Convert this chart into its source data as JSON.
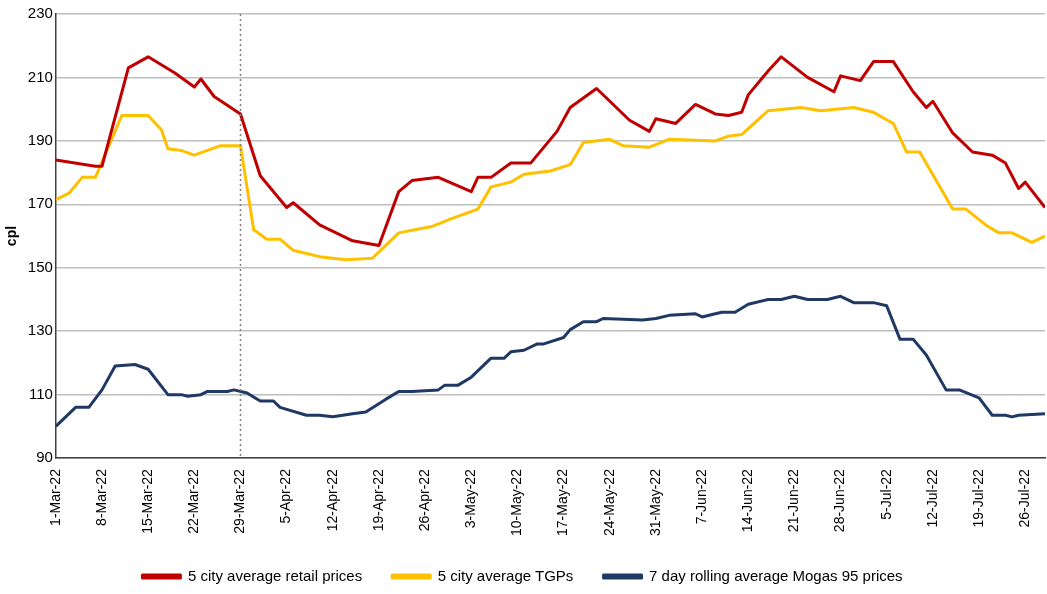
{
  "chart_data": {
    "type": "line",
    "ylabel": "cpl",
    "xlim": [
      "--03-01",
      "--07-29"
    ],
    "ylim": [
      90,
      230
    ],
    "yticks": [
      90,
      110,
      130,
      150,
      170,
      190,
      210,
      230
    ],
    "xticks": [
      {
        "value": "--03-01",
        "label": "1-Mar-22"
      },
      {
        "value": "--03-08",
        "label": "8-Mar-22"
      },
      {
        "value": "--03-15",
        "label": "15-Mar-22"
      },
      {
        "value": "--03-22",
        "label": "22-Mar-22"
      },
      {
        "value": "--03-29",
        "label": "29-Mar-22"
      },
      {
        "value": "--04-05",
        "label": "5-Apr-22"
      },
      {
        "value": "--04-12",
        "label": "12-Apr-22"
      },
      {
        "value": "--04-19",
        "label": "19-Apr-22"
      },
      {
        "value": "--04-26",
        "label": "26-Apr-22"
      },
      {
        "value": "--05-03",
        "label": "3-May-22"
      },
      {
        "value": "--05-10",
        "label": "10-May-22"
      },
      {
        "value": "--05-17",
        "label": "17-May-22"
      },
      {
        "value": "--05-24",
        "label": "24-May-22"
      },
      {
        "value": "--05-31",
        "label": "31-May-22"
      },
      {
        "value": "--06-07",
        "label": "7-Jun-22"
      },
      {
        "value": "--06-14",
        "label": "14-Jun-22"
      },
      {
        "value": "--06-21",
        "label": "21-Jun-22"
      },
      {
        "value": "--06-28",
        "label": "28-Jun-22"
      },
      {
        "value": "--07-05",
        "label": "5-Jul-22"
      },
      {
        "value": "--07-12",
        "label": "12-Jul-22"
      },
      {
        "value": "--07-19",
        "label": "19-Jul-22"
      },
      {
        "value": "--07-26",
        "label": "26-Jul-22"
      }
    ],
    "grid": "y",
    "legend": "bottom",
    "marker": "none",
    "line_style": "solid",
    "ref_lines": [
      {
        "axis": "x",
        "value": "--03-29",
        "color": "#808080",
        "line_style": "dotted"
      }
    ],
    "series": [
      {
        "name": "5 city average retail prices",
        "color": "#c00000",
        "x": [
          "--03-01",
          "--03-07",
          "--03-08",
          "--03-12",
          "--03-15",
          "--03-19",
          "--03-22",
          "--03-23",
          "--03-25",
          "--03-29",
          "--04-01",
          "--04-05",
          "--04-06",
          "--04-10",
          "--04-15",
          "--04-19",
          "--04-22",
          "--04-24",
          "--04-28",
          "--05-03",
          "--05-04",
          "--05-06",
          "--05-09",
          "--05-12",
          "--05-16",
          "--05-18",
          "--05-22",
          "--05-27",
          "--05-30",
          "--05-31",
          "--06-03",
          "--06-06",
          "--06-09",
          "--06-11",
          "--06-13",
          "--06-14",
          "--06-17",
          "--06-19",
          "--06-23",
          "--06-27",
          "--06-28",
          "--07-01",
          "--07-03",
          "--07-06",
          "--07-09",
          "--07-11",
          "--07-12",
          "--07-15",
          "--07-18",
          "--07-21",
          "--07-23",
          "--07-25",
          "--07-26",
          "--07-29"
        ],
        "values": [
          184,
          182,
          182,
          213,
          216.5,
          211.5,
          207,
          209.5,
          204,
          198.5,
          179,
          169,
          170.5,
          163.5,
          158.5,
          157,
          174,
          177.5,
          178.5,
          174,
          178.5,
          178.5,
          183,
          183,
          193,
          200.5,
          206.5,
          196.5,
          193,
          197,
          195.5,
          201.5,
          198.5,
          198,
          199,
          204.5,
          212,
          216.5,
          210,
          205.5,
          210.5,
          209,
          215,
          215,
          205.5,
          200.5,
          202.5,
          192.5,
          186.5,
          185.5,
          183,
          175,
          177,
          169
        ]
      },
      {
        "name": "5 city average TGPs",
        "color": "#ffc000",
        "x": [
          "--03-01",
          "--03-03",
          "--03-05",
          "--03-07",
          "--03-11",
          "--03-15",
          "--03-17",
          "--03-18",
          "--03-20",
          "--03-22",
          "--03-26",
          "--03-29",
          "--03-31",
          "--04-02",
          "--04-04",
          "--04-06",
          "--04-10",
          "--04-14",
          "--04-18",
          "--04-22",
          "--04-27",
          "--04-30",
          "--05-04",
          "--05-06",
          "--05-09",
          "--05-11",
          "--05-15",
          "--05-18",
          "--05-20",
          "--05-24",
          "--05-26",
          "--05-30",
          "--06-02",
          "--06-09",
          "--06-11",
          "--06-13",
          "--06-17",
          "--06-22",
          "--06-25",
          "--06-30",
          "--07-03",
          "--07-06",
          "--07-08",
          "--07-10",
          "--07-15",
          "--07-17",
          "--07-20",
          "--07-22",
          "--07-24",
          "--07-27",
          "--07-29"
        ],
        "values": [
          171.5,
          173.5,
          178.5,
          178.5,
          198,
          198,
          193.5,
          187.5,
          187,
          185.5,
          188.5,
          188.5,
          162,
          159,
          159,
          155.5,
          153.5,
          152.5,
          153,
          161,
          163,
          165.5,
          168.5,
          175.5,
          177,
          179.5,
          180.5,
          182.5,
          189.5,
          190.5,
          188.5,
          188,
          190.5,
          190,
          191.5,
          192,
          199.5,
          200.5,
          199.5,
          200.5,
          199,
          195.5,
          186.5,
          186.5,
          168.5,
          168.5,
          163.5,
          161,
          161,
          158,
          160
        ]
      },
      {
        "name": "7 day rolling average Mogas 95 prices",
        "color": "#1f3864",
        "x": [
          "--03-01",
          "--03-04",
          "--03-06",
          "--03-08",
          "--03-10",
          "--03-13",
          "--03-15",
          "--03-18",
          "--03-20",
          "--03-21",
          "--03-23",
          "--03-24",
          "--03-27",
          "--03-28",
          "--03-30",
          "--04-01",
          "--04-03",
          "--04-04",
          "--04-08",
          "--04-10",
          "--04-12",
          "--04-15",
          "--04-17",
          "--04-20",
          "--04-22",
          "--04-24",
          "--04-28",
          "--04-29",
          "--05-01",
          "--05-03",
          "--05-06",
          "--05-08",
          "--05-09",
          "--05-11",
          "--05-13",
          "--05-14",
          "--05-17",
          "--05-18",
          "--05-20",
          "--05-22",
          "--05-23",
          "--05-29",
          "--05-31",
          "--06-02",
          "--06-06",
          "--06-07",
          "--06-09",
          "--06-10",
          "--06-12",
          "--06-14",
          "--06-17",
          "--06-19",
          "--06-21",
          "--06-23",
          "--06-26",
          "--06-28",
          "--06-30",
          "--07-03",
          "--07-05",
          "--07-07",
          "--07-09",
          "--07-11",
          "--07-14",
          "--07-16",
          "--07-19",
          "--07-21",
          "--07-23",
          "--07-24",
          "--07-25",
          "--07-29"
        ],
        "values": [
          100,
          106,
          106,
          111.5,
          119,
          119.5,
          118,
          110,
          110,
          109.5,
          110,
          111,
          111,
          111.5,
          110.5,
          108,
          108,
          106,
          103.5,
          103.5,
          103,
          104,
          104.5,
          108.5,
          111,
          111,
          111.5,
          113,
          113,
          115.5,
          121.5,
          121.5,
          123.5,
          124,
          126,
          126,
          128,
          130.5,
          133,
          133,
          134,
          133.5,
          134,
          135,
          135.5,
          134.5,
          135.5,
          136,
          136,
          138.5,
          140,
          140,
          141,
          140,
          140,
          141,
          139,
          139,
          138,
          127.5,
          127.5,
          122.5,
          111.5,
          111.5,
          109,
          103.5,
          103.5,
          103,
          103.5,
          104
        ]
      }
    ]
  }
}
